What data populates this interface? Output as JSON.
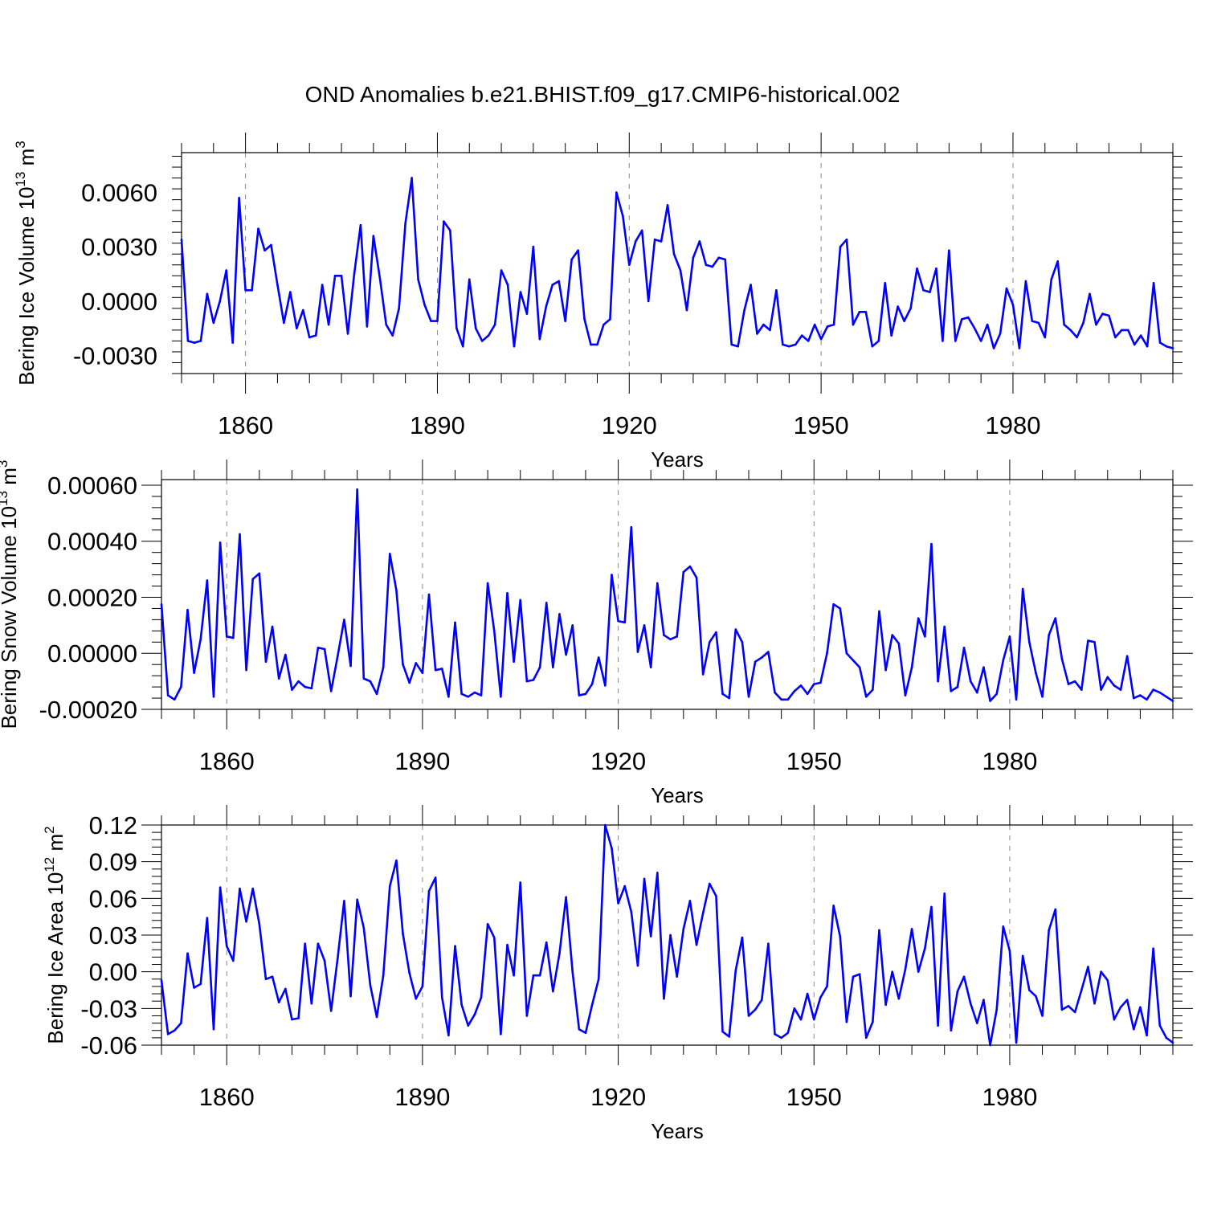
{
  "figure": {
    "title": "OND Anomalies b.e21.BHIST.f09_g17.CMIP6-historical.002"
  },
  "colors": {
    "line": "#0000ff",
    "axis": "#000000",
    "gridline": "#888888",
    "background": "#ffffff"
  },
  "chart_data": [
    {
      "type": "line",
      "title": "OND Anomalies b.e21.BHIST.f09_g17.CMIP6-historical.002",
      "ylabel": "Bering Ice Volume",
      "ylabel_unit": "10",
      "ylabel_exp": "13",
      "ylabel_m": "m",
      "ylabel_m_exp": "3",
      "xlabel": "Years",
      "xlim": [
        1850,
        2005
      ],
      "ylim": [
        -0.004,
        0.0082
      ],
      "yticks": [
        -0.003,
        0.0,
        0.003,
        0.006
      ],
      "ytick_labels": [
        "-0.0030",
        "0.0000",
        "0.0030",
        "0.0060"
      ],
      "xticks": [
        1860,
        1890,
        1920,
        1950,
        1980
      ],
      "xtick_labels": [
        "1860",
        "1890",
        "1920",
        "1950",
        "1980"
      ],
      "vlines": [
        1860,
        1890,
        1920,
        1950,
        1980
      ],
      "series": [
        {
          "name": "Bering Ice Volume",
          "x_start": 1850,
          "values": [
            0.0034,
            -0.0022,
            -0.0023,
            -0.0022,
            0.0004,
            -0.0012,
            0.0,
            0.0017,
            -0.0023,
            0.0057,
            0.0006,
            0.0006,
            0.004,
            0.0028,
            0.0031,
            0.0009,
            -0.0012,
            0.0005,
            -0.0015,
            -0.0005,
            -0.002,
            -0.0019,
            0.0009,
            -0.0013,
            0.0014,
            0.0014,
            -0.0018,
            0.0015,
            0.0042,
            -0.0014,
            0.0036,
            0.0013,
            -0.0013,
            -0.0019,
            -0.0004,
            0.0043,
            0.0068,
            0.0012,
            -0.0002,
            -0.0011,
            -0.0011,
            0.0044,
            0.0039,
            -0.0015,
            -0.0025,
            0.0012,
            -0.0015,
            -0.0022,
            -0.0019,
            -0.0013,
            0.0017,
            0.0009,
            -0.0025,
            0.0005,
            -0.0007,
            0.003,
            -0.0021,
            -0.0003,
            0.0009,
            0.0011,
            -0.0011,
            0.0023,
            0.0028,
            -0.001,
            -0.0024,
            -0.0024,
            -0.0013,
            -0.001,
            0.006,
            0.0047,
            0.002,
            0.0033,
            0.0039,
            0.0,
            0.0034,
            0.0033,
            0.0053,
            0.0026,
            0.0017,
            -0.0005,
            0.0024,
            0.0033,
            0.002,
            0.0019,
            0.0024,
            0.0023,
            -0.0024,
            -0.0025,
            -0.0005,
            0.0009,
            -0.0018,
            -0.0013,
            -0.0016,
            0.0006,
            -0.0024,
            -0.0025,
            -0.0024,
            -0.0019,
            -0.0022,
            -0.0013,
            -0.0021,
            -0.0014,
            -0.0013,
            0.003,
            0.0034,
            -0.0013,
            -0.0006,
            -0.0006,
            -0.0025,
            -0.0022,
            0.001,
            -0.0019,
            -0.0003,
            -0.0011,
            -0.0004,
            0.0018,
            0.0006,
            0.0005,
            0.0018,
            -0.0022,
            0.0028,
            -0.0022,
            -0.001,
            -0.0009,
            -0.0015,
            -0.0022,
            -0.0013,
            -0.0026,
            -0.0018,
            0.0007,
            -0.0002,
            -0.0026,
            0.0011,
            -0.0011,
            -0.0012,
            -0.002,
            0.0012,
            0.0022,
            -0.0013,
            -0.0016,
            -0.002,
            -0.0012,
            0.0004,
            -0.0013,
            -0.0007,
            -0.0008,
            -0.002,
            -0.0016,
            -0.0016,
            -0.0024,
            -0.0019,
            -0.0025,
            0.001,
            -0.0023,
            -0.0025,
            -0.0026
          ]
        }
      ]
    },
    {
      "type": "line",
      "ylabel": "Bering Snow Volume",
      "ylabel_unit": "10",
      "ylabel_exp": "13",
      "ylabel_m": "m",
      "ylabel_m_exp": "3",
      "xlabel": "Years",
      "xlim": [
        1850,
        2005
      ],
      "ylim": [
        -0.0002,
        0.00062
      ],
      "yticks": [
        -0.0002,
        0.0,
        0.0002,
        0.0004,
        0.0006
      ],
      "ytick_labels": [
        "-0.00020",
        "0.00000",
        "0.00020",
        "0.00040",
        "0.00060"
      ],
      "xticks": [
        1860,
        1890,
        1920,
        1950,
        1980
      ],
      "xtick_labels": [
        "1860",
        "1890",
        "1920",
        "1950",
        "1980"
      ],
      "vlines": [
        1860,
        1890,
        1920,
        1950,
        1980
      ],
      "series": [
        {
          "name": "Bering Snow Volume",
          "x_start": 1850,
          "values": [
            0.000175,
            -0.00015,
            -0.000165,
            -0.00012,
            0.000155,
            -7e-05,
            5e-05,
            0.00026,
            -0.000155,
            0.000395,
            6e-05,
            5.5e-05,
            0.000425,
            -6e-05,
            0.000265,
            0.000285,
            -3e-05,
            9.5e-05,
            -9e-05,
            -5e-06,
            -0.00013,
            -0.0001,
            -0.00012,
            -0.000125,
            2e-05,
            1.5e-05,
            -0.000135,
            -1e-05,
            0.00012,
            -4.5e-05,
            0.000585,
            -9e-05,
            -0.0001,
            -0.000145,
            -5e-05,
            0.000355,
            0.000225,
            -4e-05,
            -0.000105,
            -3.5e-05,
            -7e-05,
            0.00021,
            -6e-05,
            -5.5e-05,
            -0.000155,
            0.00011,
            -0.000145,
            -0.000155,
            -0.00014,
            -0.00015,
            0.00025,
            8e-05,
            -0.000155,
            0.000215,
            -3e-05,
            0.00019,
            -0.0001,
            -9.5e-05,
            -5e-05,
            0.00018,
            -5e-05,
            0.00014,
            -5e-06,
            0.0001,
            -0.00015,
            -0.000145,
            -0.00011,
            -1.5e-05,
            -0.000115,
            0.00028,
            0.000115,
            0.00011,
            0.00045,
            5e-06,
            0.0001,
            -5e-05,
            0.00025,
            6.5e-05,
            5e-05,
            6e-05,
            0.00029,
            0.00031,
            0.00027,
            -7.5e-05,
            4e-05,
            7.5e-05,
            -0.000145,
            -0.00016,
            8.5e-05,
            4e-05,
            -0.000155,
            -3e-05,
            -1.5e-05,
            5e-06,
            -0.00014,
            -0.000165,
            -0.000165,
            -0.000135,
            -0.000115,
            -0.000145,
            -0.00011,
            -0.000105,
            0.0,
            0.000175,
            0.00016,
            0.0,
            -2.5e-05,
            -5e-05,
            -0.000155,
            -0.00013,
            0.00015,
            -6e-05,
            6.5e-05,
            3.5e-05,
            -0.00015,
            -5e-05,
            0.000125,
            6e-05,
            0.00039,
            -0.0001,
            9.5e-05,
            -0.000135,
            -0.00012,
            2e-05,
            -0.0001,
            -0.00014,
            -5e-05,
            -0.00017,
            -0.000145,
            -2.5e-05,
            6e-05,
            -0.000165,
            0.00023,
            4e-05,
            -7e-05,
            -0.000155,
            6.5e-05,
            0.000125,
            -2e-05,
            -0.00011,
            -0.0001,
            -0.00013,
            4.5e-05,
            4e-05,
            -0.00013,
            -8.5e-05,
            -0.000115,
            -0.00013,
            -1e-05,
            -0.00016,
            -0.00015,
            -0.000165,
            -0.00013,
            -0.00014,
            -0.000155,
            -0.00017
          ]
        }
      ]
    },
    {
      "type": "line",
      "ylabel": "Bering Ice Area",
      "ylabel_unit": "10",
      "ylabel_exp": "12",
      "ylabel_m": "m",
      "ylabel_m_exp": "2",
      "xlabel": "Years",
      "xlim": [
        1850,
        2005
      ],
      "ylim": [
        -0.06,
        0.12
      ],
      "yticks": [
        -0.06,
        -0.03,
        0.0,
        0.03,
        0.06,
        0.09,
        0.12
      ],
      "ytick_labels": [
        "-0.06",
        "-0.03",
        "0.00",
        "0.03",
        "0.06",
        "0.09",
        "0.12"
      ],
      "xticks": [
        1860,
        1890,
        1920,
        1950,
        1980
      ],
      "xtick_labels": [
        "1860",
        "1890",
        "1920",
        "1950",
        "1980"
      ],
      "vlines": [
        1860,
        1890,
        1920,
        1950,
        1980
      ],
      "series": [
        {
          "name": "Bering Ice Area",
          "x_start": 1850,
          "values": [
            -0.007,
            -0.051,
            -0.048,
            -0.042,
            0.015,
            -0.013,
            -0.01,
            0.044,
            -0.047,
            0.069,
            0.021,
            0.009,
            0.068,
            0.041,
            0.068,
            0.039,
            -0.006,
            -0.004,
            -0.025,
            -0.014,
            -0.039,
            -0.038,
            0.023,
            -0.026,
            0.023,
            0.009,
            -0.032,
            0.011,
            0.058,
            -0.02,
            0.059,
            0.036,
            -0.011,
            -0.037,
            -0.003,
            0.07,
            0.091,
            0.031,
            -0.001,
            -0.022,
            -0.012,
            0.066,
            0.077,
            -0.021,
            -0.052,
            0.021,
            -0.027,
            -0.044,
            -0.035,
            -0.021,
            0.039,
            0.028,
            -0.051,
            0.022,
            -0.003,
            0.073,
            -0.036,
            -0.003,
            -0.003,
            0.024,
            -0.016,
            0.015,
            0.061,
            0.0,
            -0.047,
            -0.05,
            -0.027,
            -0.006,
            0.12,
            0.101,
            0.056,
            0.07,
            0.049,
            0.005,
            0.076,
            0.029,
            0.081,
            -0.022,
            0.03,
            -0.004,
            0.035,
            0.058,
            0.022,
            0.048,
            0.072,
            0.062,
            -0.049,
            -0.053,
            0.001,
            0.028,
            -0.036,
            -0.031,
            -0.023,
            0.023,
            -0.051,
            -0.054,
            -0.05,
            -0.03,
            -0.039,
            -0.018,
            -0.039,
            -0.021,
            -0.012,
            0.054,
            0.029,
            -0.041,
            -0.004,
            -0.002,
            -0.054,
            -0.041,
            0.034,
            -0.027,
            0.0,
            -0.022,
            0.002,
            0.035,
            0.0,
            0.019,
            0.053,
            -0.044,
            0.064,
            -0.048,
            -0.016,
            -0.004,
            -0.026,
            -0.042,
            -0.023,
            -0.06,
            -0.031,
            0.037,
            0.017,
            -0.058,
            0.013,
            -0.015,
            -0.02,
            -0.036,
            0.034,
            0.051,
            -0.031,
            -0.028,
            -0.033,
            -0.015,
            0.004,
            -0.026,
            0.0,
            -0.007,
            -0.039,
            -0.029,
            -0.023,
            -0.047,
            -0.029,
            -0.052,
            0.019,
            -0.044,
            -0.054,
            -0.058
          ]
        }
      ]
    }
  ]
}
